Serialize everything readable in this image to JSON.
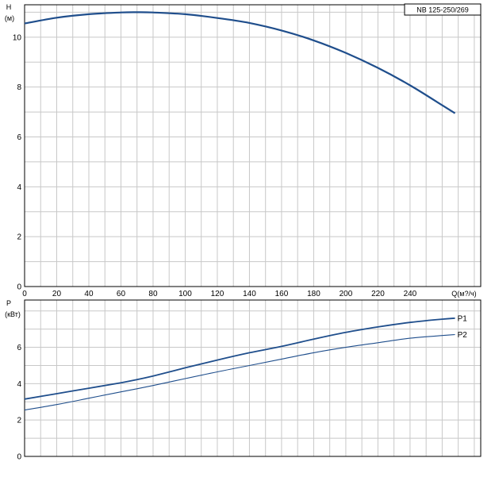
{
  "chart_data": [
    {
      "type": "line",
      "title": "NB 125-250/269",
      "ylabel": "H",
      "ylabel_unit": "(м)",
      "xlabel": "Q(м?/ч)",
      "xlim": [
        0,
        284
      ],
      "ylim": [
        0,
        11.3
      ],
      "x_ticks": [
        "0",
        "20",
        "40",
        "60",
        "80",
        "100",
        "120",
        "140",
        "160",
        "180",
        "200",
        "220",
        "240"
      ],
      "y_ticks": [
        "0",
        "2",
        "4",
        "6",
        "8",
        "10"
      ],
      "grid": true,
      "color": "#1f4e8c",
      "series": [
        {
          "x": [
            0,
            20,
            40,
            60,
            70,
            80,
            100,
            120,
            140,
            160,
            180,
            200,
            220,
            240,
            260,
            268
          ],
          "values": [
            10.55,
            10.78,
            10.92,
            10.99,
            11.0,
            10.99,
            10.92,
            10.77,
            10.57,
            10.27,
            9.87,
            9.37,
            8.77,
            8.07,
            7.27,
            6.95
          ]
        }
      ]
    },
    {
      "type": "line",
      "ylabel": "P",
      "ylabel_unit": "(кВт)",
      "ylim": [
        0,
        8.6
      ],
      "y_ticks": [
        "0",
        "2",
        "4",
        "6"
      ],
      "grid": true,
      "series": [
        {
          "name": "P1",
          "x": [
            0,
            20,
            40,
            60,
            70,
            80,
            100,
            120,
            140,
            160,
            180,
            200,
            220,
            240,
            260,
            268
          ],
          "values": [
            3.15,
            3.45,
            3.75,
            4.05,
            4.22,
            4.42,
            4.87,
            5.3,
            5.7,
            6.05,
            6.45,
            6.82,
            7.12,
            7.37,
            7.55,
            7.6
          ]
        },
        {
          "name": "P2",
          "x": [
            0,
            20,
            40,
            60,
            70,
            80,
            100,
            120,
            140,
            160,
            180,
            200,
            220,
            240,
            260,
            268
          ],
          "values": [
            2.55,
            2.85,
            3.2,
            3.55,
            3.72,
            3.9,
            4.28,
            4.65,
            5.0,
            5.35,
            5.7,
            6.0,
            6.25,
            6.5,
            6.65,
            6.7
          ]
        }
      ]
    }
  ]
}
